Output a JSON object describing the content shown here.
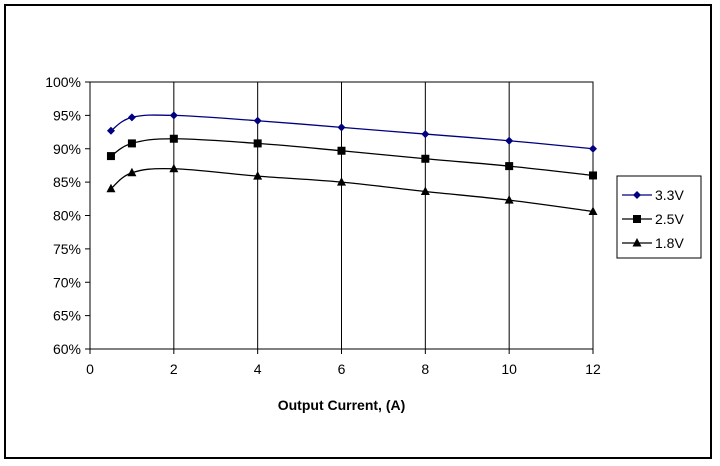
{
  "chart_data": {
    "type": "line",
    "title": "",
    "xlabel": "Output Current, (A)",
    "ylabel": "",
    "xlim": [
      0,
      12
    ],
    "ylim": [
      60,
      100
    ],
    "x_ticks": [
      0,
      2,
      4,
      6,
      8,
      10,
      12
    ],
    "y_ticks": [
      60,
      65,
      70,
      75,
      80,
      85,
      90,
      95,
      100
    ],
    "y_tick_labels": [
      "60%",
      "65%",
      "70%",
      "75%",
      "80%",
      "85%",
      "90%",
      "95%",
      "100%"
    ],
    "x_tick_labels": [
      "0",
      "2",
      "4",
      "6",
      "8",
      "10",
      "12"
    ],
    "grid": "vertical",
    "legend_position": "right",
    "series": [
      {
        "name": "3.3V",
        "marker": "diamond",
        "color": "#000080",
        "x": [
          0.5,
          1,
          2,
          4,
          6,
          8,
          10,
          12
        ],
        "values": [
          92.7,
          94.7,
          95.0,
          94.2,
          93.2,
          92.2,
          91.2,
          90.0
        ]
      },
      {
        "name": "2.5V",
        "marker": "square",
        "color": "#000000",
        "x": [
          0.5,
          1,
          2,
          4,
          6,
          8,
          10,
          12
        ],
        "values": [
          88.9,
          90.8,
          91.5,
          90.8,
          89.7,
          88.5,
          87.4,
          86.0
        ]
      },
      {
        "name": "1.8V",
        "marker": "triangle",
        "color": "#000000",
        "x": [
          0.5,
          1,
          2,
          4,
          6,
          8,
          10,
          12
        ],
        "values": [
          84.0,
          86.4,
          87.0,
          85.9,
          85.0,
          83.6,
          82.3,
          80.6
        ]
      }
    ]
  }
}
